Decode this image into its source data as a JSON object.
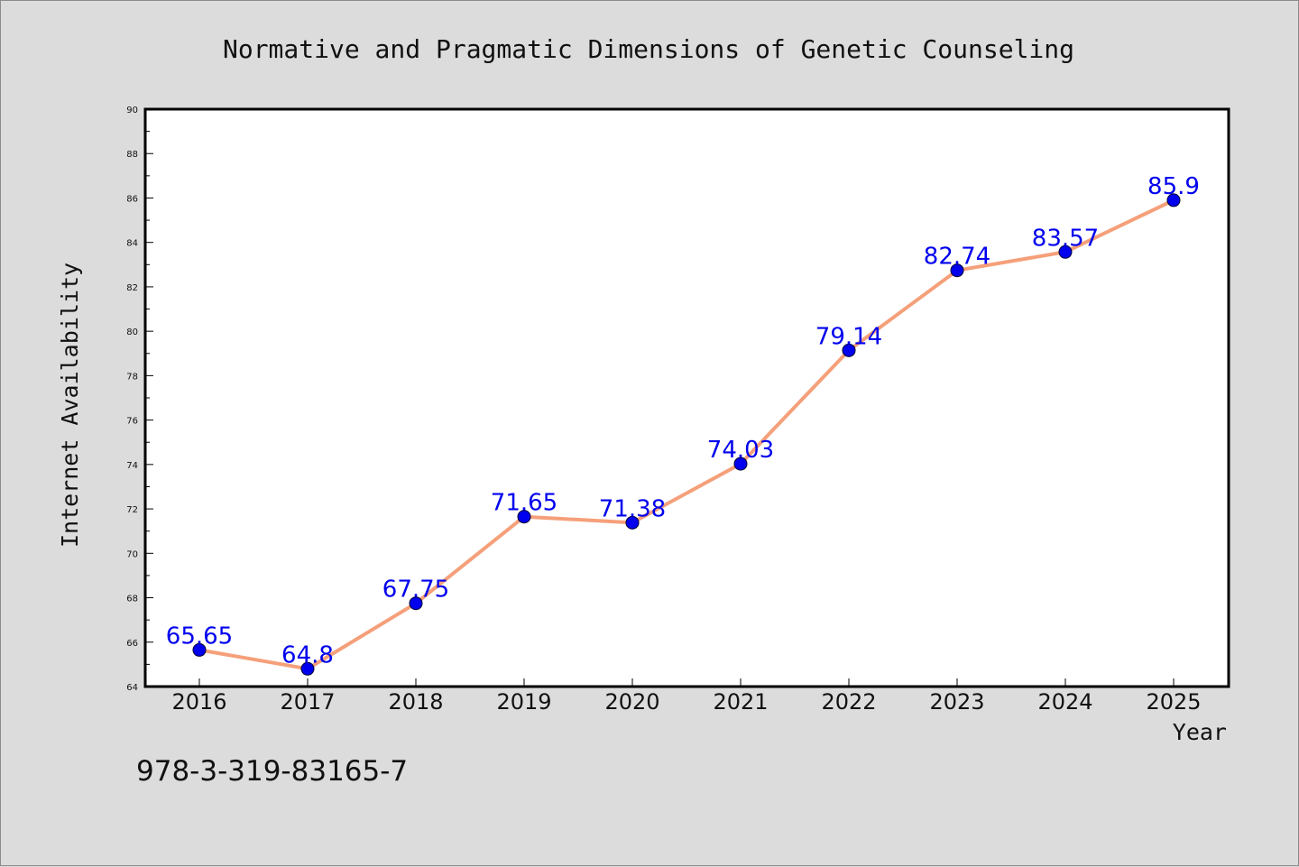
{
  "chart_data": {
    "type": "line",
    "title": "Normative and Pragmatic Dimensions of Genetic Counseling",
    "xlabel": "Year",
    "ylabel": "Internet Availability",
    "categories": [
      "2016",
      "2017",
      "2018",
      "2019",
      "2020",
      "2021",
      "2022",
      "2023",
      "2024",
      "2025"
    ],
    "series": [
      {
        "values": [
          65.65,
          64.8,
          67.75,
          71.65,
          71.38,
          74.03,
          79.14,
          82.74,
          83.57,
          85.9
        ],
        "data_labels": [
          "65.65",
          "64.8",
          "67.75",
          "71.65",
          "71.38",
          "74.03",
          "79.14",
          "82.74",
          "83.57",
          "85.9"
        ],
        "line_color": "#f5a07a",
        "marker_color": "#0000ee"
      }
    ],
    "ylim": [
      64,
      90
    ],
    "yticks": [
      "64",
      "66",
      "68",
      "70",
      "72",
      "74",
      "76",
      "78",
      "80",
      "82",
      "84",
      "86",
      "88",
      "90"
    ],
    "grid": false,
    "legend": "none"
  },
  "footer_text": "978-3-319-83165-7"
}
